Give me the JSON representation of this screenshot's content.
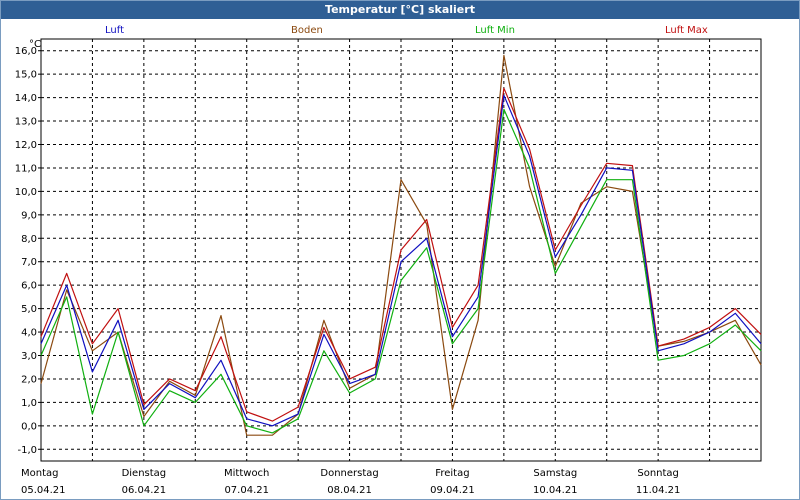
{
  "window": {
    "title": "Temperatur [°C] skaliert"
  },
  "colors": {
    "luft": "#1010c0",
    "boden": "#8b4a10",
    "luft_min": "#10b010",
    "luft_max": "#c01010"
  },
  "chart_data": {
    "type": "line",
    "title": "Temperatur [°C] skaliert",
    "ylabel": "°C",
    "xlabel": "",
    "ylim": [
      -1.5,
      16.5
    ],
    "xlim": [
      0,
      7
    ],
    "yticks": [
      "16,0",
      "15,0",
      "14,0",
      "13,0",
      "12,0",
      "11,0",
      "10,0",
      "9,0",
      "8,0",
      "7,0",
      "6,0",
      "5,0",
      "4,0",
      "3,0",
      "2,0",
      "1,0",
      "0,0",
      "-1,0"
    ],
    "ytick_values": [
      16,
      15,
      14,
      13,
      12,
      11,
      10,
      9,
      8,
      7,
      6,
      5,
      4,
      3,
      2,
      1,
      0,
      -1
    ],
    "xticks": [
      {
        "day": "Montag",
        "date": "05.04.21",
        "x": 0
      },
      {
        "day": "Dienstag",
        "date": "06.04.21",
        "x": 1
      },
      {
        "day": "Mittwoch",
        "date": "07.04.21",
        "x": 2
      },
      {
        "day": "Donnerstag",
        "date": "08.04.21",
        "x": 3
      },
      {
        "day": "Freitag",
        "date": "09.04.21",
        "x": 4
      },
      {
        "day": "Samstag",
        "date": "10.04.21",
        "x": 5
      },
      {
        "day": "Sonntag",
        "date": "11.04.21",
        "x": 6
      }
    ],
    "grid": true,
    "legend_placement": "top",
    "x": [
      0,
      0.25,
      0.5,
      0.75,
      1,
      1.25,
      1.5,
      1.75,
      2,
      2.25,
      2.5,
      2.75,
      3,
      3.25,
      3.5,
      3.75,
      4,
      4.25,
      4.5,
      4.75,
      5,
      5.25,
      5.5,
      5.75,
      6,
      6.25,
      6.5,
      6.75,
      7
    ],
    "series": [
      {
        "name": "Luft",
        "key": "luft",
        "values": [
          3.5,
          6.0,
          2.3,
          4.5,
          0.7,
          1.8,
          1.2,
          2.8,
          0.3,
          0.0,
          0.5,
          3.9,
          1.8,
          2.2,
          7.0,
          8.0,
          3.8,
          5.5,
          14.1,
          11.5,
          7.2,
          9.0,
          11.0,
          10.9,
          3.2,
          3.5,
          4.0,
          4.8,
          3.5
        ]
      },
      {
        "name": "Boden",
        "key": "boden",
        "values": [
          1.8,
          5.8,
          3.2,
          4.0,
          0.4,
          1.9,
          1.3,
          4.7,
          -0.4,
          -0.4,
          0.5,
          4.5,
          1.6,
          2.2,
          10.5,
          8.6,
          0.7,
          4.5,
          15.8,
          10.2,
          6.8,
          9.5,
          10.2,
          10.0,
          3.4,
          3.6,
          4.0,
          4.5,
          2.6
        ]
      },
      {
        "name": "Luft Min",
        "key": "luft_min",
        "values": [
          3.0,
          5.5,
          0.5,
          4.0,
          0.0,
          1.5,
          1.0,
          2.2,
          0.0,
          -0.3,
          0.3,
          3.2,
          1.4,
          2.0,
          6.2,
          7.6,
          3.5,
          5.0,
          13.5,
          11.0,
          6.5,
          8.5,
          10.5,
          10.5,
          2.8,
          3.0,
          3.5,
          4.3,
          3.2
        ]
      },
      {
        "name": "Luft Max",
        "key": "luft_max",
        "values": [
          3.8,
          6.5,
          3.5,
          5.0,
          0.9,
          2.0,
          1.5,
          3.8,
          0.6,
          0.2,
          0.8,
          4.2,
          2.0,
          2.5,
          7.5,
          8.8,
          4.2,
          6.0,
          14.4,
          11.8,
          7.5,
          9.4,
          11.2,
          11.1,
          3.4,
          3.7,
          4.2,
          5.0,
          3.9
        ]
      }
    ]
  },
  "legend": {
    "luft": "Luft",
    "boden": "Boden",
    "luft_min": "Luft Min",
    "luft_max": "Luft Max"
  }
}
